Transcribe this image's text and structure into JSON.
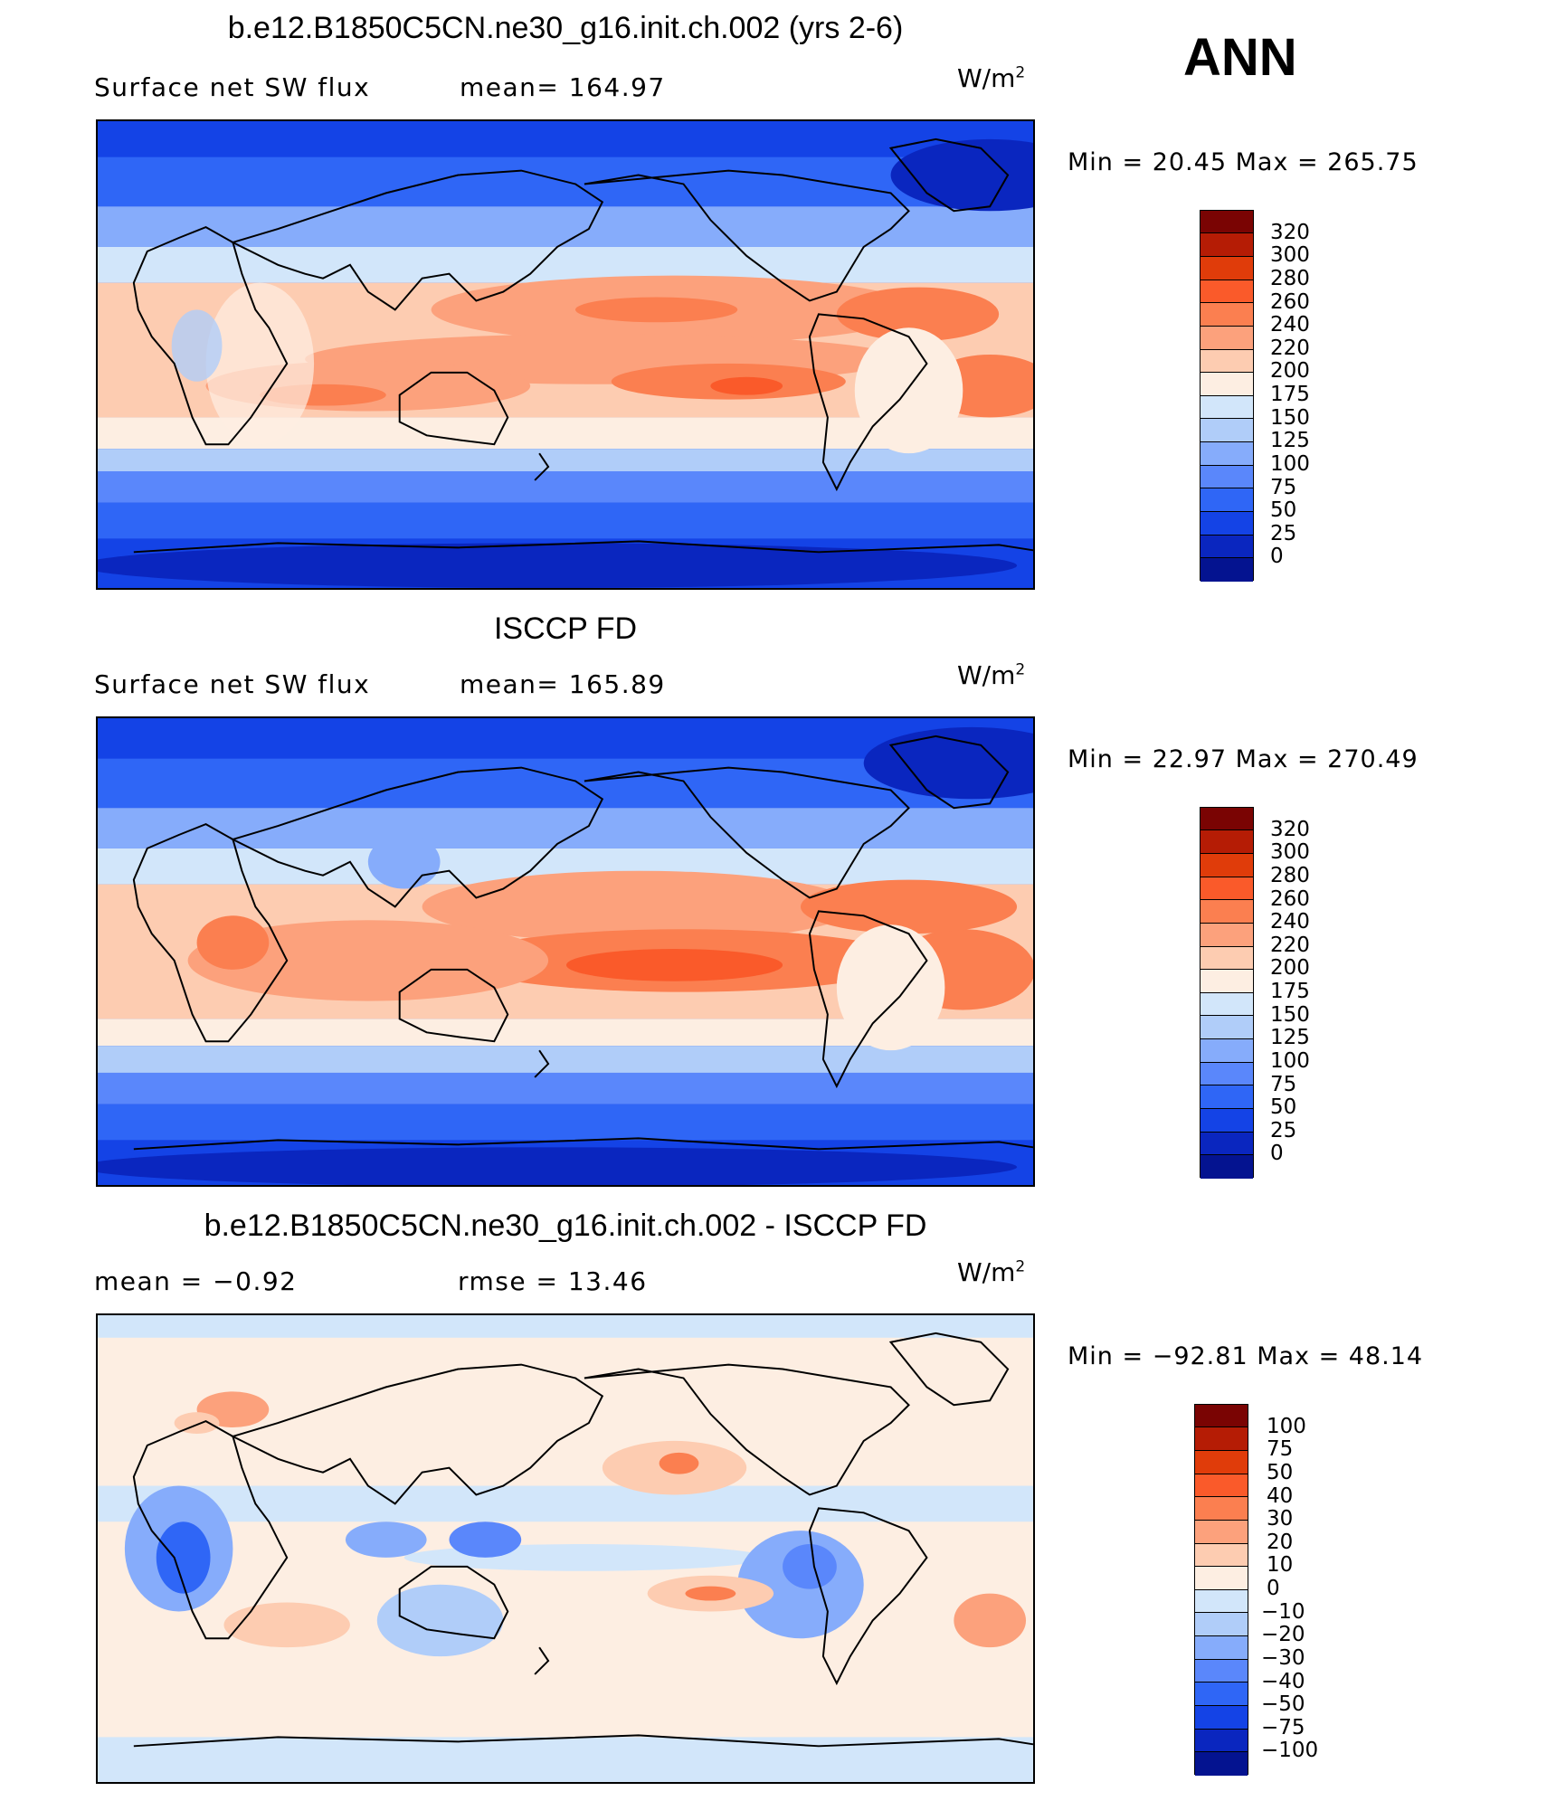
{
  "season": "ANN",
  "panels": [
    {
      "title": "b.e12.B1850C5CN.ne30_g16.init.ch.002 (yrs 2-6)",
      "left_label": "Surface net SW flux",
      "right_label": "mean= 164.97",
      "units": "W/m",
      "units_exp": "2",
      "minmax": "Min =   20.45  Max  =  265.75",
      "colorbar": {
        "labels": [
          "320",
          "300",
          "280",
          "260",
          "240",
          "220",
          "200",
          "175",
          "150",
          "125",
          "100",
          "75",
          "50",
          "25",
          "0"
        ],
        "colors": [
          "#7a0403",
          "#b51c05",
          "#e03c0a",
          "#fa5a2a",
          "#fb7f50",
          "#fca17c",
          "#fdccb1",
          "#fdeee2",
          "#d2e6fa",
          "#b0cdf9",
          "#86acfb",
          "#5a87fb",
          "#2f66f6",
          "#1443e6",
          "#0a26bf",
          "#041390"
        ]
      }
    },
    {
      "title": "ISCCP FD",
      "left_label": "Surface net SW flux",
      "right_label": "mean= 165.89",
      "units": "W/m",
      "units_exp": "2",
      "minmax": "Min =   22.97  Max  =  270.49",
      "colorbar": {
        "labels": [
          "320",
          "300",
          "280",
          "260",
          "240",
          "220",
          "200",
          "175",
          "150",
          "125",
          "100",
          "75",
          "50",
          "25",
          "0"
        ],
        "colors": [
          "#7a0403",
          "#b51c05",
          "#e03c0a",
          "#fa5a2a",
          "#fb7f50",
          "#fca17c",
          "#fdccb1",
          "#fdeee2",
          "#d2e6fa",
          "#b0cdf9",
          "#86acfb",
          "#5a87fb",
          "#2f66f6",
          "#1443e6",
          "#0a26bf",
          "#041390"
        ]
      }
    },
    {
      "title": "b.e12.B1850C5CN.ne30_g16.init.ch.002 - ISCCP FD",
      "left_label": "mean =   −0.92",
      "right_label": "rmse =   13.46",
      "units": "W/m",
      "units_exp": "2",
      "minmax": "Min = −92.81  Max =   48.14",
      "colorbar": {
        "labels": [
          "100",
          "75",
          "50",
          "40",
          "30",
          "20",
          "10",
          "0",
          "−10",
          "−20",
          "−30",
          "−40",
          "−50",
          "−75",
          "−100"
        ],
        "colors": [
          "#7a0403",
          "#b51c05",
          "#e03c0a",
          "#fa5a2a",
          "#fb7f50",
          "#fca17c",
          "#fdccb1",
          "#fdeee2",
          "#d2e6fa",
          "#b0cdf9",
          "#86acfb",
          "#5a87fb",
          "#2f66f6",
          "#1443e6",
          "#0a26bf",
          "#041390"
        ]
      }
    }
  ]
}
